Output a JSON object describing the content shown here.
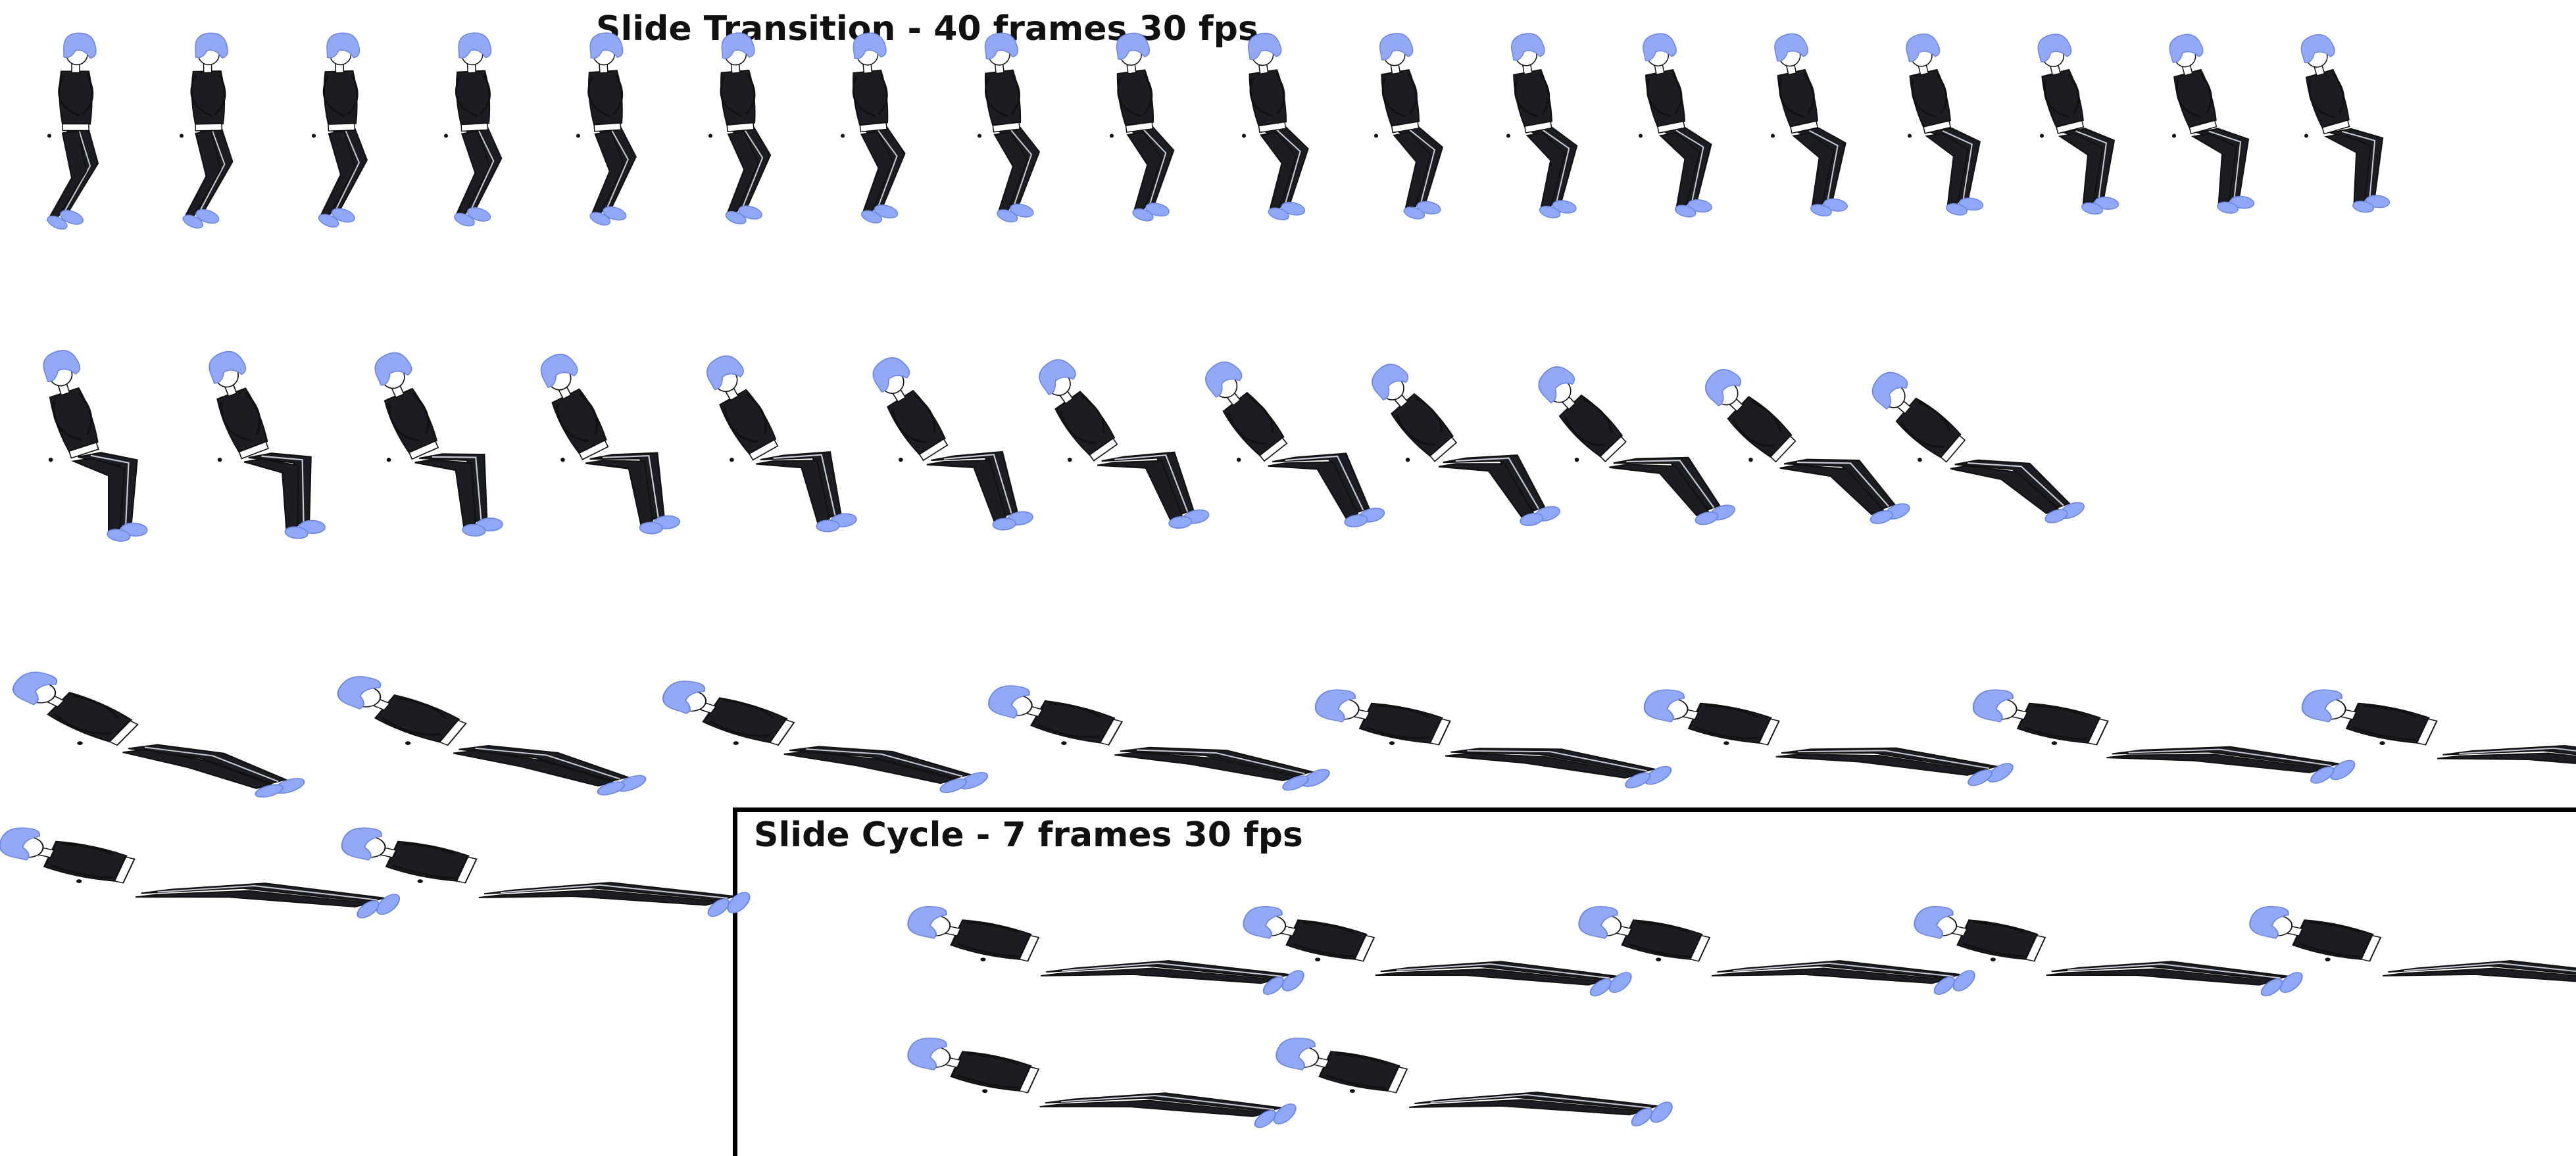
{
  "sheets": [
    {
      "id": "transition",
      "title": "Slide Transition - 40 frames 30 fps",
      "frame_count": 40
    },
    {
      "id": "cycle",
      "title": "Slide Cycle - 7 frames 30 fps",
      "frame_count": 7
    }
  ],
  "colors": {
    "hair": "#94a9f5",
    "shoes": "#8fa8f8",
    "outfit": "#1c1d22",
    "skin": "#ffffff",
    "outline": "#111111",
    "seam": "#c9ccd6",
    "frame_border": "#000000"
  }
}
